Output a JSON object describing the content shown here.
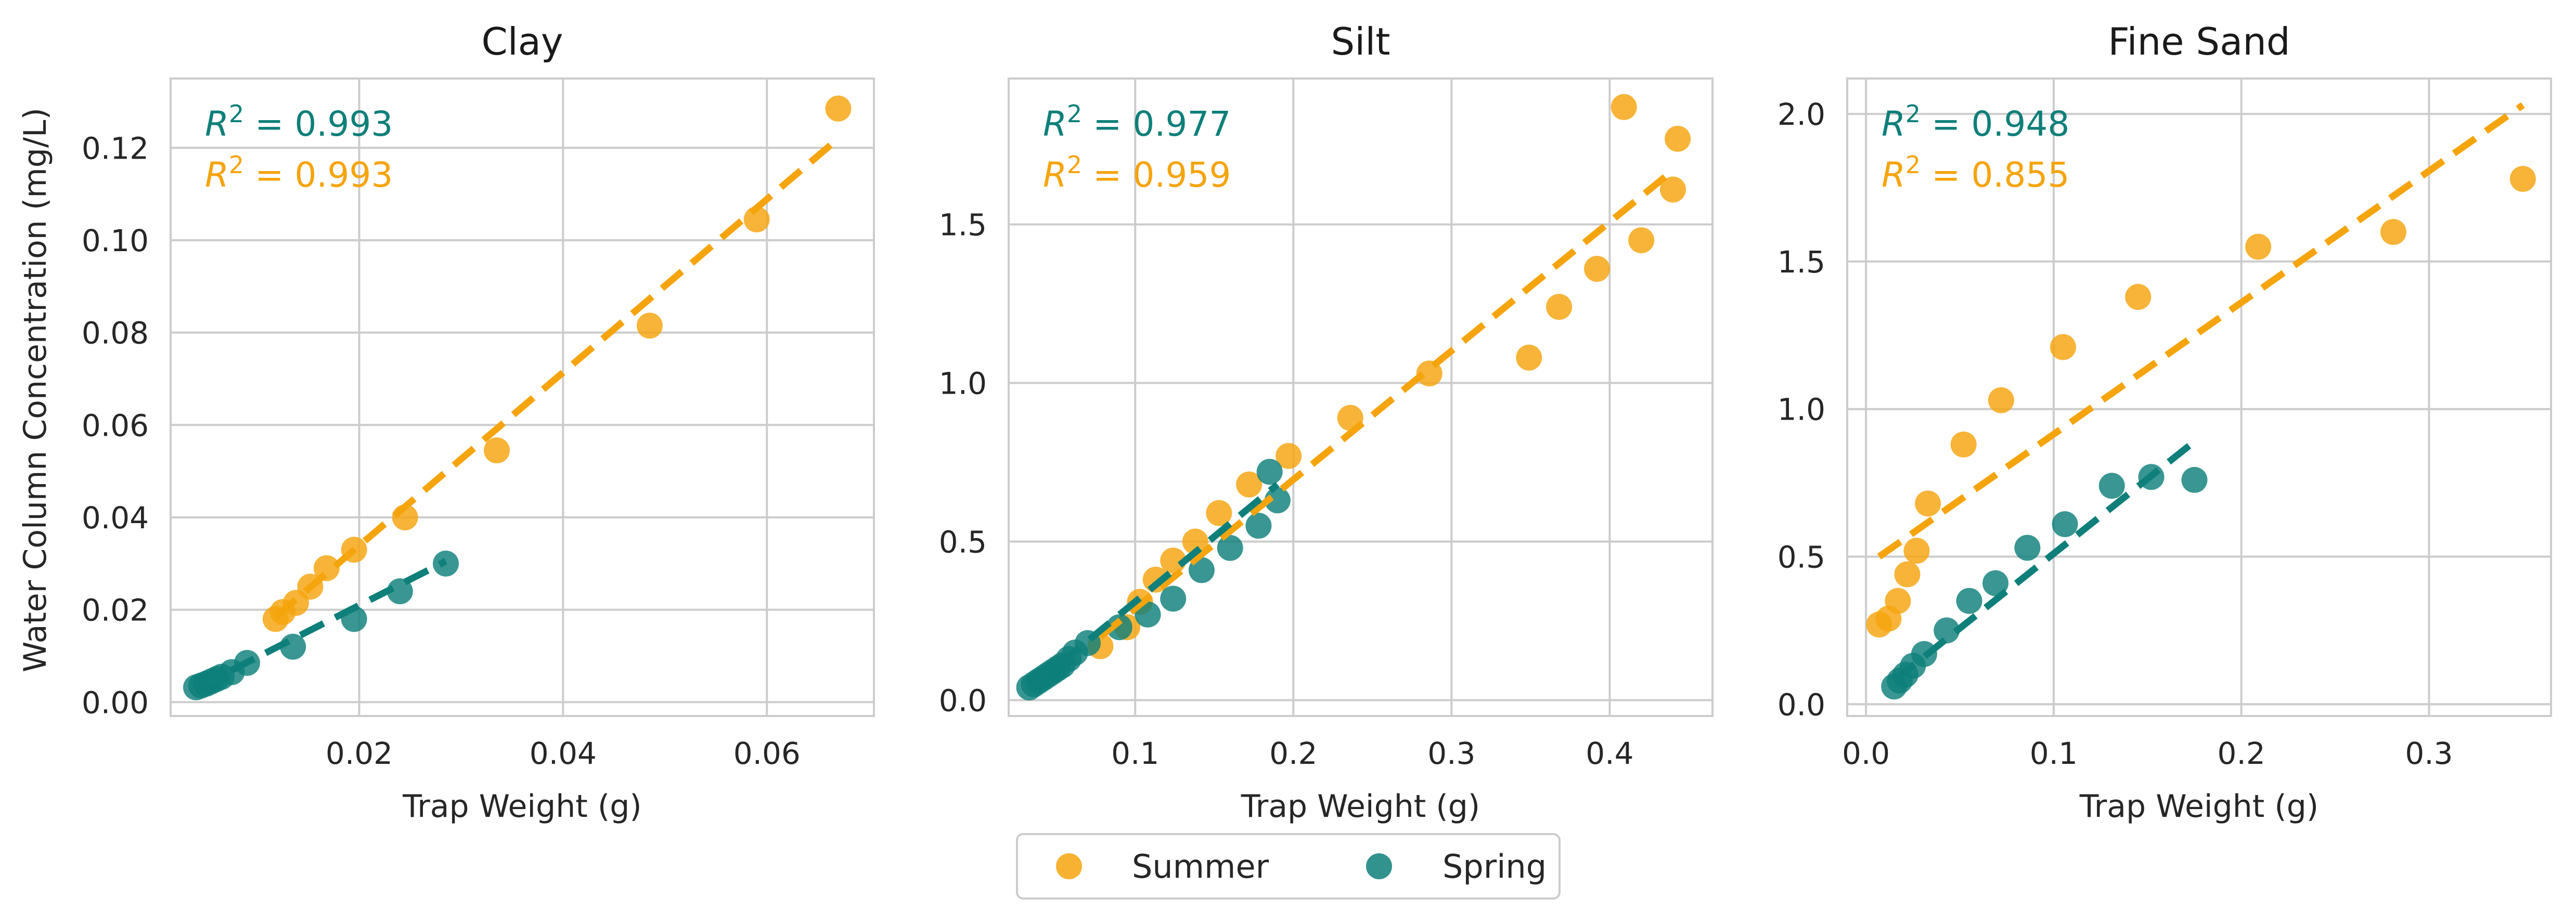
{
  "colors": {
    "summer": "#f5a40c",
    "spring": "#0e7f7a"
  },
  "shared": {
    "ylabel": "Water Column Concentration (mg/L)",
    "xlabel": "Trap Weight (g)"
  },
  "legend": {
    "entries": [
      "Summer",
      "Spring"
    ],
    "placement": "bottom-center"
  },
  "chart_data": [
    {
      "type": "scatter",
      "title": "Clay",
      "xlabel": "Trap Weight (g)",
      "ylabel": "Water Column Concentration (mg/L)",
      "xlim": [
        0.0015,
        0.0705
      ],
      "ylim": [
        -0.003,
        0.135
      ],
      "xticks": [
        0.02,
        0.04,
        0.06
      ],
      "yticks": [
        0.0,
        0.02,
        0.04,
        0.06,
        0.08,
        0.1,
        0.12
      ],
      "xtick_labels": [
        "0.02",
        "0.04",
        "0.06"
      ],
      "ytick_labels": [
        "0.00",
        "0.02",
        "0.04",
        "0.06",
        "0.08",
        "0.10",
        "0.12"
      ],
      "grid": true,
      "annotations": [
        "$R^2$ = 0.993",
        "$R^2$ = 0.993"
      ],
      "series": [
        {
          "name": "Summer",
          "color": "#f5a40c",
          "r2": "0.993",
          "x": [
            0.0118,
            0.0125,
            0.0138,
            0.0152,
            0.0168,
            0.0195,
            0.0245,
            0.0335,
            0.0485,
            0.059,
            0.067
          ],
          "y": [
            0.018,
            0.0195,
            0.0215,
            0.025,
            0.029,
            0.033,
            0.04,
            0.0545,
            0.0815,
            0.1045,
            0.1285
          ],
          "fit": {
            "x": [
              0.0118,
              0.067
            ],
            "y": [
              0.0185,
              0.122
            ]
          }
        },
        {
          "name": "Spring",
          "color": "#0e7f7a",
          "r2": "0.993",
          "x": [
            0.004,
            0.0045,
            0.005,
            0.0055,
            0.006,
            0.0065,
            0.0075,
            0.009,
            0.0135,
            0.0195,
            0.024,
            0.0285
          ],
          "y": [
            0.0032,
            0.0036,
            0.004,
            0.0045,
            0.005,
            0.0055,
            0.0065,
            0.0085,
            0.012,
            0.018,
            0.024,
            0.03
          ],
          "fit": {
            "x": [
              0.004,
              0.0285
            ],
            "y": [
              0.003,
              0.0305
            ]
          }
        }
      ]
    },
    {
      "type": "scatter",
      "title": "Silt",
      "xlabel": "Trap Weight (g)",
      "ylabel": "",
      "xlim": [
        0.02,
        0.465
      ],
      "ylim": [
        -0.05,
        1.96
      ],
      "xticks": [
        0.1,
        0.2,
        0.3,
        0.4
      ],
      "yticks": [
        0.0,
        0.5,
        1.0,
        1.5
      ],
      "xtick_labels": [
        "0.1",
        "0.2",
        "0.3",
        "0.4"
      ],
      "ytick_labels": [
        "0.0",
        "0.5",
        "1.0",
        "1.5"
      ],
      "grid": true,
      "annotations": [
        "$R^2$ = 0.977",
        "$R^2$ = 0.959"
      ],
      "series": [
        {
          "name": "Summer",
          "color": "#f5a40c",
          "r2": "0.959",
          "x": [
            0.078,
            0.095,
            0.103,
            0.113,
            0.124,
            0.138,
            0.153,
            0.172,
            0.197,
            0.236,
            0.286,
            0.349,
            0.368,
            0.392,
            0.409,
            0.42,
            0.44,
            0.443
          ],
          "y": [
            0.17,
            0.23,
            0.31,
            0.38,
            0.44,
            0.5,
            0.59,
            0.68,
            0.77,
            0.89,
            1.03,
            1.08,
            1.24,
            1.36,
            1.87,
            1.45,
            1.61,
            1.77
          ],
          "fit": {
            "x": [
              0.078,
              0.44
            ],
            "y": [
              0.2,
              1.67
            ]
          }
        },
        {
          "name": "Spring",
          "color": "#0e7f7a",
          "r2": "0.977",
          "x": [
            0.033,
            0.036,
            0.039,
            0.042,
            0.045,
            0.048,
            0.051,
            0.054,
            0.058,
            0.062,
            0.07,
            0.09,
            0.108,
            0.124,
            0.142,
            0.16,
            0.178,
            0.185,
            0.19
          ],
          "y": [
            0.04,
            0.05,
            0.06,
            0.07,
            0.08,
            0.09,
            0.1,
            0.11,
            0.13,
            0.15,
            0.18,
            0.23,
            0.27,
            0.32,
            0.41,
            0.48,
            0.55,
            0.72,
            0.63
          ],
          "fit": {
            "x": [
              0.033,
              0.19
            ],
            "y": [
              0.035,
              0.68
            ]
          }
        }
      ]
    },
    {
      "type": "scatter",
      "title": "Fine Sand",
      "xlabel": "Trap Weight (g)",
      "ylabel": "",
      "xlim": [
        -0.01,
        0.365
      ],
      "ylim": [
        -0.04,
        2.12
      ],
      "xticks": [
        0.0,
        0.1,
        0.2,
        0.3
      ],
      "yticks": [
        0.0,
        0.5,
        1.0,
        1.5,
        2.0
      ],
      "xtick_labels": [
        "0.0",
        "0.1",
        "0.2",
        "0.3"
      ],
      "ytick_labels": [
        "0.0",
        "0.5",
        "1.0",
        "1.5",
        "2.0"
      ],
      "grid": true,
      "annotations": [
        "$R^2$ = 0.948",
        "$R^2$ = 0.855"
      ],
      "series": [
        {
          "name": "Summer",
          "color": "#f5a40c",
          "r2": "0.855",
          "x": [
            0.007,
            0.012,
            0.017,
            0.022,
            0.027,
            0.033,
            0.052,
            0.072,
            0.105,
            0.145,
            0.209,
            0.281,
            0.35
          ],
          "y": [
            0.27,
            0.29,
            0.35,
            0.44,
            0.52,
            0.68,
            0.88,
            1.03,
            1.21,
            1.38,
            1.55,
            1.6,
            1.78
          ],
          "fit": {
            "x": [
              0.007,
              0.35
            ],
            "y": [
              0.5,
              2.03
            ]
          }
        },
        {
          "name": "Spring",
          "color": "#0e7f7a",
          "r2": "0.948",
          "x": [
            0.015,
            0.018,
            0.021,
            0.025,
            0.031,
            0.043,
            0.055,
            0.069,
            0.086,
            0.106,
            0.131,
            0.152,
            0.175
          ],
          "y": [
            0.06,
            0.08,
            0.1,
            0.13,
            0.17,
            0.25,
            0.35,
            0.41,
            0.53,
            0.61,
            0.74,
            0.77,
            0.76
          ],
          "fit": {
            "x": [
              0.015,
              0.175
            ],
            "y": [
              0.08,
              0.89
            ]
          }
        }
      ]
    }
  ]
}
